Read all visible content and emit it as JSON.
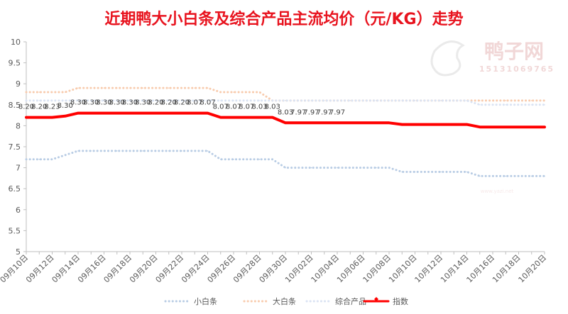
{
  "chart_data": {
    "type": "line",
    "title": "近期鸭大小白条及综合产品主流均价（元/KG）走势",
    "watermark": {
      "brand": "鸭子网",
      "phone": "15131069765",
      "site": "www.yazi.net"
    },
    "x": [
      "09月10日",
      "09月11日",
      "09月12日",
      "09月13日",
      "09月14日",
      "09月15日",
      "09月16日",
      "09月17日",
      "09月18日",
      "09月19日",
      "09月20日",
      "09月21日",
      "09月22日",
      "09月23日",
      "09月24日",
      "09月25日",
      "09月26日",
      "09月27日",
      "09月28日",
      "09月29日",
      "09月30日",
      "10月01日",
      "10月02日",
      "10月03日",
      "10月04日",
      "10月05日",
      "10月06日",
      "10月07日",
      "10月08日",
      "10月09日",
      "10月10日",
      "10月11日",
      "10月12日",
      "10月13日",
      "10月14日",
      "10月15日",
      "10月16日",
      "10月17日",
      "10月18日",
      "10月19日",
      "10月20日"
    ],
    "x_tick_labels": [
      "09月10日",
      "09月12日",
      "09月14日",
      "09月16日",
      "09月18日",
      "09月20日",
      "09月22日",
      "09月24日",
      "09月26日",
      "09月28日",
      "09月30日",
      "10月02日",
      "10月04日",
      "10月06日",
      "10月08日",
      "10月10日",
      "10月12日",
      "10月14日",
      "10月16日",
      "10月18日",
      "10月20日"
    ],
    "ylim": [
      5,
      10
    ],
    "y_ticks": [
      5,
      5.5,
      6,
      6.5,
      7,
      7.5,
      8,
      8.5,
      9,
      9.5,
      10
    ],
    "grid": false,
    "legend_position": "bottom",
    "series": [
      {
        "name": "小白条",
        "color": "#b8cce4",
        "style": "dotted",
        "values": [
          7.2,
          7.2,
          7.2,
          7.3,
          7.4,
          7.4,
          7.4,
          7.4,
          7.4,
          7.4,
          7.4,
          7.4,
          7.4,
          7.4,
          7.4,
          7.2,
          7.2,
          7.2,
          7.2,
          7.2,
          7.0,
          7.0,
          7.0,
          7.0,
          7.0,
          7.0,
          7.0,
          7.0,
          7.0,
          6.9,
          6.9,
          6.9,
          6.9,
          6.9,
          6.9,
          6.8,
          6.8,
          6.8,
          6.8,
          6.8,
          6.8
        ]
      },
      {
        "name": "大白条",
        "color": "#f8cbad",
        "style": "dotted",
        "values": [
          8.8,
          8.8,
          8.8,
          8.8,
          8.9,
          8.9,
          8.9,
          8.9,
          8.9,
          8.9,
          8.9,
          8.9,
          8.9,
          8.9,
          8.9,
          8.8,
          8.8,
          8.8,
          8.8,
          8.6,
          8.6,
          8.6,
          8.6,
          8.6,
          8.6,
          8.6,
          8.6,
          8.6,
          8.6,
          8.6,
          8.6,
          8.6,
          8.6,
          8.6,
          8.6,
          8.6,
          8.6,
          8.6,
          8.6,
          8.6,
          8.6
        ]
      },
      {
        "name": "综合产品",
        "color": "#dae3f3",
        "style": "dotted",
        "values": [
          8.6,
          8.6,
          8.6,
          8.6,
          8.6,
          8.6,
          8.6,
          8.6,
          8.6,
          8.6,
          8.6,
          8.6,
          8.6,
          8.6,
          8.6,
          8.6,
          8.6,
          8.6,
          8.6,
          8.6,
          8.6,
          8.6,
          8.6,
          8.6,
          8.6,
          8.6,
          8.6,
          8.6,
          8.6,
          8.6,
          8.6,
          8.6,
          8.6,
          8.6,
          8.6,
          8.5,
          8.5,
          8.5,
          8.5,
          8.5,
          8.5
        ]
      },
      {
        "name": "指数",
        "color": "#ff0000",
        "style": "solid",
        "labels": true,
        "values": [
          8.2,
          8.2,
          8.2,
          8.23,
          8.3,
          8.3,
          8.3,
          8.3,
          8.3,
          8.3,
          8.3,
          8.3,
          8.3,
          8.3,
          8.3,
          8.2,
          8.2,
          8.2,
          8.2,
          8.2,
          8.07,
          8.07,
          8.07,
          8.07,
          8.07,
          8.07,
          8.07,
          8.07,
          8.07,
          8.03,
          8.03,
          8.03,
          8.03,
          8.03,
          8.03,
          7.97,
          7.97,
          7.97,
          7.97,
          7.97,
          7.97
        ]
      }
    ],
    "point_labels": [
      {
        "i": 0,
        "text": "8.20"
      },
      {
        "i": 3,
        "text": "8.20"
      },
      {
        "i": 6,
        "text": "8.23"
      },
      {
        "i": 9,
        "text": "8.30"
      },
      {
        "i": 12,
        "text": "8.30"
      },
      {
        "i": 15,
        "text": "8.30"
      },
      {
        "i": 18,
        "text": "8.30"
      },
      {
        "i": 21,
        "text": "8.30"
      },
      {
        "i": 24,
        "text": "8.30"
      },
      {
        "i": 27,
        "text": "8.30"
      },
      {
        "i": 30,
        "text": "8.20"
      },
      {
        "i": 33,
        "text": "8.20"
      },
      {
        "i": 36,
        "text": "8.20"
      },
      {
        "i": 39,
        "text": "8.07"
      },
      {
        "i": 42,
        "text": "8.07"
      },
      {
        "i": 45,
        "text": "8.07"
      },
      {
        "i": 48,
        "text": "8.07"
      },
      {
        "i": 51,
        "text": "8.07"
      },
      {
        "i": 54,
        "text": "8.03"
      },
      {
        "i": 57,
        "text": "8.03"
      },
      {
        "i": 60,
        "text": "8.03"
      },
      {
        "i": 63,
        "text": "7.97"
      },
      {
        "i": 66,
        "text": "7.97"
      },
      {
        "i": 69,
        "text": "7.97"
      },
      {
        "i": 72,
        "text": "7.97"
      }
    ]
  }
}
